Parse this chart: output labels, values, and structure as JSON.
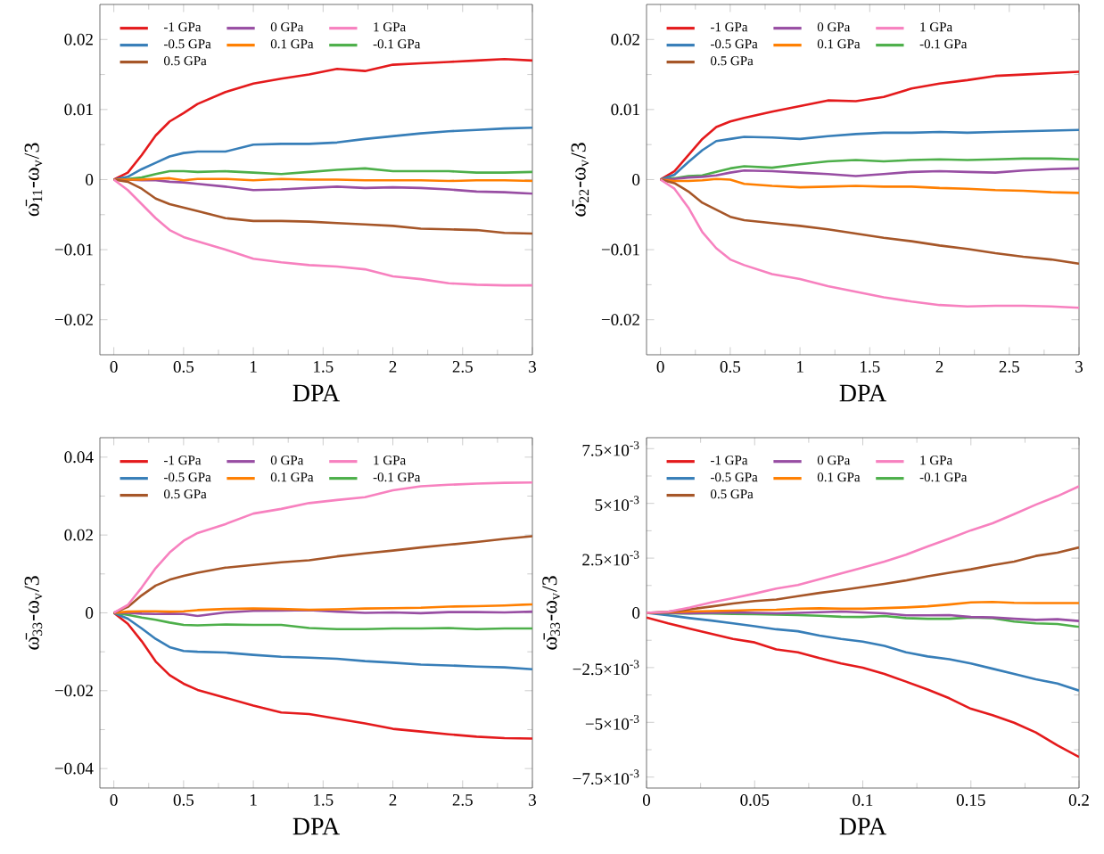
{
  "chart_data": [
    {
      "type": "line",
      "xlabel": "DPA",
      "ylabel": "ω̄$_{11}$-ω$_{v}$/3",
      "legend": "top left",
      "x": [
        0,
        0.1,
        0.2,
        0.3,
        0.4,
        0.5,
        0.6,
        0.8,
        1,
        1.2,
        1.4,
        1.6,
        1.8,
        2,
        2.2,
        2.4,
        2.6,
        2.8,
        3
      ],
      "xlim": [
        -0.1,
        3
      ],
      "xticks": [
        0,
        0.5,
        1,
        1.5,
        2,
        2.5,
        3
      ],
      "ylim": [
        -0.025,
        0.025
      ],
      "yticks": [
        {
          "value": -0.02,
          "label": "−0.02"
        },
        {
          "value": -0.01,
          "label": "−0.01"
        },
        0,
        0.01,
        0.02
      ],
      "series": [
        {
          "name": "-1 GPa",
          "color": "#e41a1c",
          "values": [
            0,
            0.001,
            0.0035,
            0.0063,
            0.0083,
            0.0095,
            0.0108,
            0.0125,
            0.0137,
            0.0144,
            0.015,
            0.0158,
            0.0155,
            0.0164,
            0.0166,
            0.0168,
            0.017,
            0.0172,
            0.017
          ]
        },
        {
          "name": "-0.5 GPa",
          "color": "#377eb8",
          "values": [
            0,
            0.0004,
            0.0015,
            0.0024,
            0.0033,
            0.0038,
            0.004,
            0.004,
            0.005,
            0.0051,
            0.0051,
            0.0053,
            0.0058,
            0.0062,
            0.0066,
            0.0069,
            0.0071,
            0.0073,
            0.0074
          ]
        },
        {
          "name": "-0.1 GPa",
          "color": "#4daf4a",
          "values": [
            0,
            0.0001,
            0.0003,
            0.0008,
            0.0012,
            0.0012,
            0.0011,
            0.0012,
            0.001,
            0.0008,
            0.0011,
            0.0014,
            0.0016,
            0.0012,
            0.0012,
            0.0012,
            0.001,
            0.001,
            0.0011
          ]
        },
        {
          "name": "0 GPa",
          "color": "#984ea3",
          "values": [
            0,
            0,
            -0.0001,
            -0.0001,
            -0.0003,
            -0.0004,
            -0.0006,
            -0.001,
            -0.0015,
            -0.0014,
            -0.0012,
            -0.001,
            -0.0012,
            -0.0011,
            -0.0012,
            -0.0014,
            -0.0017,
            -0.0018,
            -0.002
          ]
        },
        {
          "name": "0.1 GPa",
          "color": "#ff7f00",
          "values": [
            0,
            0,
            0,
            0.0001,
            0.0002,
            -0.0001,
            0.0001,
            0.0001,
            -0.0001,
            0.0001,
            0,
            0,
            -0.0001,
            -0.0001,
            -0.0001,
            -0.0002,
            -0.0001,
            -0.0001,
            -0.0002
          ]
        },
        {
          "name": "0.5 GPa",
          "color": "#a65628",
          "values": [
            0,
            -0.0003,
            -0.0013,
            -0.0027,
            -0.0035,
            -0.004,
            -0.0045,
            -0.0055,
            -0.0059,
            -0.0059,
            -0.006,
            -0.0062,
            -0.0064,
            -0.0066,
            -0.007,
            -0.0071,
            -0.0072,
            -0.0076,
            -0.0077
          ]
        },
        {
          "name": "1 GPa",
          "color": "#f781bf",
          "values": [
            0,
            -0.0015,
            -0.0035,
            -0.0055,
            -0.0072,
            -0.0082,
            -0.0088,
            -0.01,
            -0.0113,
            -0.0118,
            -0.0122,
            -0.0124,
            -0.0128,
            -0.0138,
            -0.0142,
            -0.0148,
            -0.015,
            -0.0151,
            -0.0151
          ]
        }
      ]
    },
    {
      "type": "line",
      "xlabel": "DPA",
      "ylabel": "ω̄$_{22}$-ω$_{v}$/3",
      "legend": "top left",
      "x": [
        0,
        0.1,
        0.2,
        0.3,
        0.4,
        0.5,
        0.6,
        0.8,
        1,
        1.2,
        1.4,
        1.6,
        1.8,
        2,
        2.2,
        2.4,
        2.6,
        2.8,
        3
      ],
      "xlim": [
        -0.1,
        3
      ],
      "xticks": [
        0,
        0.5,
        1,
        1.5,
        2,
        2.5,
        3
      ],
      "ylim": [
        -0.025,
        0.025
      ],
      "yticks": [
        {
          "value": -0.02,
          "label": "−0.02"
        },
        {
          "value": -0.01,
          "label": "−0.01"
        },
        0,
        0.01,
        0.02
      ],
      "series": [
        {
          "name": "-1 GPa",
          "color": "#e41a1c",
          "values": [
            0,
            0.0012,
            0.0035,
            0.0058,
            0.0075,
            0.0083,
            0.0088,
            0.0097,
            0.0105,
            0.0113,
            0.0112,
            0.0118,
            0.013,
            0.0137,
            0.0142,
            0.0148,
            0.015,
            0.0152,
            0.0154
          ]
        },
        {
          "name": "-0.5 GPa",
          "color": "#377eb8",
          "values": [
            0,
            0.0007,
            0.0025,
            0.0042,
            0.0055,
            0.0058,
            0.0061,
            0.006,
            0.0058,
            0.0062,
            0.0065,
            0.0067,
            0.0067,
            0.0068,
            0.0067,
            0.0068,
            0.0069,
            0.007,
            0.0071
          ]
        },
        {
          "name": "-0.1 GPa",
          "color": "#4daf4a",
          "values": [
            0,
            0.0002,
            0.0005,
            0.0006,
            0.0011,
            0.0016,
            0.0019,
            0.0017,
            0.0022,
            0.0026,
            0.0028,
            0.0026,
            0.0028,
            0.0029,
            0.0028,
            0.0029,
            0.003,
            0.003,
            0.0029
          ]
        },
        {
          "name": "0 GPa",
          "color": "#984ea3",
          "values": [
            0,
            0.0001,
            0.0003,
            0.0004,
            0.0006,
            0.001,
            0.0013,
            0.0012,
            0.001,
            0.0008,
            0.0005,
            0.0008,
            0.0011,
            0.0012,
            0.0011,
            0.001,
            0.0013,
            0.0015,
            0.0016
          ]
        },
        {
          "name": "0.1 GPa",
          "color": "#ff7f00",
          "values": [
            0,
            -0.0002,
            -0.0002,
            -0.0001,
            0.0001,
            0,
            -0.0006,
            -0.0009,
            -0.0011,
            -0.001,
            -0.0009,
            -0.001,
            -0.001,
            -0.0012,
            -0.0013,
            -0.0015,
            -0.0016,
            -0.0018,
            -0.0019
          ]
        },
        {
          "name": "0.5 GPa",
          "color": "#a65628",
          "values": [
            0,
            -0.0005,
            -0.0017,
            -0.0033,
            -0.0043,
            -0.0053,
            -0.0058,
            -0.0062,
            -0.0066,
            -0.0071,
            -0.0077,
            -0.0083,
            -0.0088,
            -0.0094,
            -0.0099,
            -0.0105,
            -0.011,
            -0.0114,
            -0.012
          ]
        },
        {
          "name": "1 GPa",
          "color": "#f781bf",
          "values": [
            0,
            -0.0013,
            -0.004,
            -0.0075,
            -0.0098,
            -0.0114,
            -0.0122,
            -0.0135,
            -0.0142,
            -0.0152,
            -0.016,
            -0.0168,
            -0.0174,
            -0.0179,
            -0.0181,
            -0.018,
            -0.018,
            -0.0181,
            -0.0183
          ]
        }
      ]
    },
    {
      "type": "line",
      "xlabel": "DPA",
      "ylabel": "ω̄$_{33}$-ω$_{v}$/3",
      "legend": "top left",
      "x": [
        0,
        0.1,
        0.2,
        0.3,
        0.4,
        0.5,
        0.6,
        0.8,
        1,
        1.2,
        1.4,
        1.6,
        1.8,
        2,
        2.2,
        2.4,
        2.6,
        2.8,
        3
      ],
      "xlim": [
        -0.1,
        3
      ],
      "xticks": [
        0,
        0.5,
        1,
        1.5,
        2,
        2.5,
        3
      ],
      "ylim": [
        -0.045,
        0.045
      ],
      "yticks": [
        {
          "value": -0.04,
          "label": "−0.04"
        },
        {
          "value": -0.02,
          "label": "−0.02"
        },
        0,
        0.02,
        0.04
      ],
      "series": [
        {
          "name": "-1 GPa",
          "color": "#e41a1c",
          "values": [
            0,
            -0.0028,
            -0.0073,
            -0.0125,
            -0.016,
            -0.0182,
            -0.0198,
            -0.0218,
            -0.0238,
            -0.0256,
            -0.026,
            -0.0272,
            -0.0284,
            -0.0298,
            -0.0305,
            -0.0312,
            -0.0318,
            -0.0322,
            -0.0323
          ]
        },
        {
          "name": "-0.5 GPa",
          "color": "#377eb8",
          "values": [
            0,
            -0.0015,
            -0.004,
            -0.0067,
            -0.0088,
            -0.0098,
            -0.01,
            -0.0102,
            -0.0108,
            -0.0113,
            -0.0115,
            -0.0118,
            -0.0124,
            -0.0128,
            -0.0133,
            -0.0135,
            -0.0138,
            -0.014,
            -0.0145
          ]
        },
        {
          "name": "-0.1 GPa",
          "color": "#4daf4a",
          "values": [
            0,
            -0.0005,
            -0.0012,
            -0.0018,
            -0.0025,
            -0.0031,
            -0.0032,
            -0.003,
            -0.0031,
            -0.0031,
            -0.0039,
            -0.0042,
            -0.0042,
            -0.004,
            -0.004,
            -0.0039,
            -0.0042,
            -0.004,
            -0.004
          ]
        },
        {
          "name": "0 GPa",
          "color": "#984ea3",
          "values": [
            0,
            0,
            -0.0002,
            -0.0003,
            -0.0002,
            -0.0003,
            -0.0008,
            0.0001,
            0.0005,
            0.0006,
            0.0007,
            0.0003,
            0,
            0.0001,
            -0.0001,
            0.0002,
            0.0002,
            0.0001,
            0.0003
          ]
        },
        {
          "name": "0.1 GPa",
          "color": "#ff7f00",
          "values": [
            0,
            0.0003,
            0.0004,
            0.0004,
            0.0003,
            0.0004,
            0.0007,
            0.001,
            0.0011,
            0.001,
            0.0008,
            0.0009,
            0.0011,
            0.0012,
            0.0013,
            0.0016,
            0.0017,
            0.0019,
            0.0022
          ]
        },
        {
          "name": "0.5 GPa",
          "color": "#a65628",
          "values": [
            0,
            0.0015,
            0.0045,
            0.007,
            0.0085,
            0.0095,
            0.0103,
            0.0116,
            0.0123,
            0.013,
            0.0135,
            0.0145,
            0.0153,
            0.016,
            0.0168,
            0.0175,
            0.0182,
            0.019,
            0.0197
          ]
        },
        {
          "name": "1 GPa",
          "color": "#f781bf",
          "values": [
            0,
            0.002,
            0.0065,
            0.0115,
            0.0155,
            0.0185,
            0.0205,
            0.0228,
            0.0255,
            0.0267,
            0.0282,
            0.029,
            0.0297,
            0.0315,
            0.0325,
            0.0329,
            0.0332,
            0.0334,
            0.0335
          ]
        }
      ]
    },
    {
      "type": "line",
      "xlabel": "DPA",
      "ylabel": "ω̄$_{33}$-ω$_{v}$/3",
      "legend": "top left",
      "x": [
        0,
        0.01,
        0.02,
        0.03,
        0.04,
        0.05,
        0.06,
        0.07,
        0.08,
        0.09,
        0.1,
        0.11,
        0.12,
        0.13,
        0.14,
        0.15,
        0.16,
        0.17,
        0.18,
        0.19,
        0.2
      ],
      "xlim": [
        0,
        0.2
      ],
      "xticks": [
        0,
        0.05,
        0.1,
        0.15,
        0.2
      ],
      "ylim": [
        -0.008,
        0.008
      ],
      "yticks": [
        {
          "value": -0.0075,
          "label": "−7.5×10$^{-3}$"
        },
        {
          "value": -0.005,
          "label": "−5×10$^{-3}$"
        },
        {
          "value": -0.0025,
          "label": "−2.5×10$^{-3}$"
        },
        0,
        {
          "value": 0.0025,
          "label": "2.5×10$^{-3}$"
        },
        {
          "value": 0.005,
          "label": "5×10$^{-3}$"
        },
        {
          "value": 0.0075,
          "label": "7.5×10$^{-3}$"
        }
      ],
      "series": [
        {
          "name": "-1 GPa",
          "color": "#e41a1c",
          "values": [
            -0.00021,
            -0.00048,
            -0.00072,
            -0.00096,
            -0.00119,
            -0.00135,
            -0.00167,
            -0.0018,
            -0.00207,
            -0.00231,
            -0.0025,
            -0.00279,
            -0.00314,
            -0.0035,
            -0.0039,
            -0.00438,
            -0.00467,
            -0.00502,
            -0.00546,
            -0.00605,
            -0.00658
          ]
        },
        {
          "name": "-0.5 GPa",
          "color": "#377eb8",
          "values": [
            0,
            -0.00011,
            -0.00024,
            -0.00035,
            -0.00048,
            -0.00061,
            -0.00075,
            -0.00084,
            -0.00104,
            -0.00119,
            -0.00131,
            -0.00151,
            -0.0018,
            -0.00199,
            -0.00212,
            -0.00231,
            -0.00255,
            -0.00279,
            -0.00303,
            -0.00323,
            -0.00355
          ]
        },
        {
          "name": "-0.1 GPa",
          "color": "#4daf4a",
          "values": [
            0,
            -2e-05,
            -3e-05,
            -3e-05,
            -5e-05,
            -6e-05,
            -8e-05,
            -0.0001,
            -0.00013,
            -0.00018,
            -0.00019,
            -0.00014,
            -0.00024,
            -0.00027,
            -0.00027,
            -0.00021,
            -0.00024,
            -0.0004,
            -0.00048,
            -0.00051,
            -0.00064
          ]
        },
        {
          "name": "0 GPa",
          "color": "#984ea3",
          "values": [
            0,
            0,
            -2e-05,
            0,
            2e-05,
            0,
            -2e-05,
            0,
            3e-05,
            6e-05,
            2e-05,
            -2e-05,
            -0.00011,
            -0.00011,
            -0.0001,
            -0.00019,
            -0.00021,
            -0.00027,
            -0.00032,
            -0.00029,
            -0.00037
          ]
        },
        {
          "name": "0.1 GPa",
          "color": "#ff7f00",
          "values": [
            0,
            3e-05,
            6e-05,
            8e-05,
            0.0001,
            0.00013,
            0.00014,
            0.00019,
            0.00021,
            0.00019,
            0.00019,
            0.00022,
            0.00025,
            0.0003,
            0.00038,
            0.00048,
            0.0005,
            0.00046,
            0.00045,
            0.00045,
            0.00045
          ]
        },
        {
          "name": "0.5 GPa",
          "color": "#a65628",
          "values": [
            0,
            5e-05,
            0.00016,
            0.00029,
            0.00043,
            0.00054,
            0.00061,
            0.00076,
            0.00091,
            0.00104,
            0.00118,
            0.00132,
            0.00148,
            0.00167,
            0.00183,
            0.00199,
            0.00218,
            0.00234,
            0.0026,
            0.00275,
            0.00299
          ]
        },
        {
          "name": "1 GPa",
          "color": "#f781bf",
          "values": [
            0,
            5e-05,
            0.00024,
            0.00048,
            0.00067,
            0.00088,
            0.00111,
            0.00127,
            0.00154,
            0.0018,
            0.00207,
            0.00234,
            0.00266,
            0.00303,
            0.00339,
            0.00377,
            0.00409,
            0.00451,
            0.00494,
            0.00533,
            0.00578
          ]
        }
      ]
    }
  ]
}
